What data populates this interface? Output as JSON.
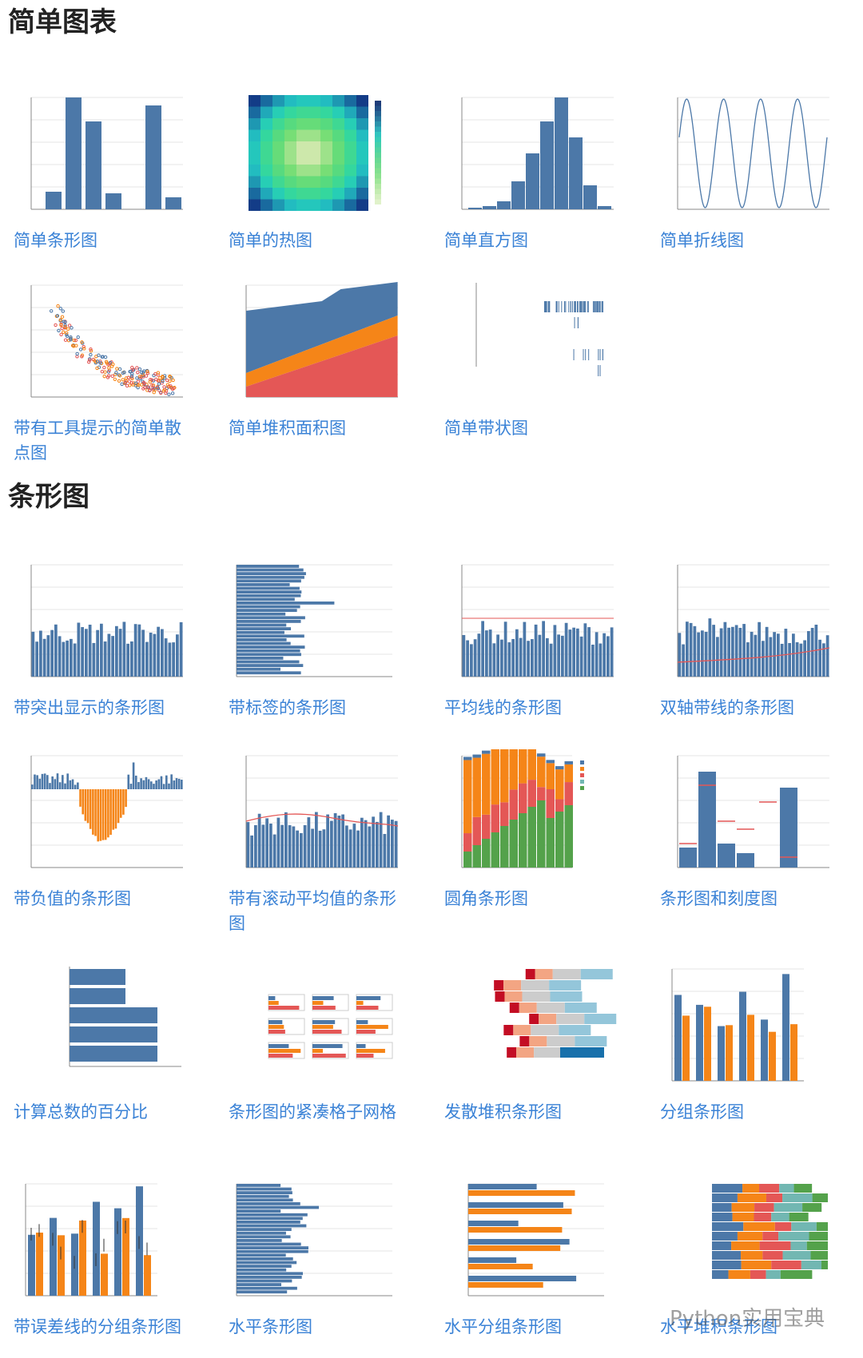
{
  "sections": [
    {
      "title": "简单图表",
      "items": [
        "简单条形图",
        "简单的热图",
        "简单直方图",
        "简单折线图",
        "带有工具提示的简单散点图",
        "简单堆积面积图",
        "简单带状图"
      ]
    },
    {
      "title": "条形图",
      "items": [
        "带突出显示的条形图",
        "带标签的条形图",
        "平均线的条形图",
        "双轴带线的条形图",
        "带负值的条形图",
        "带有滚动平均值的条形图",
        "圆角条形图",
        "条形图和刻度图",
        "计算总数的百分比",
        "条形图的紧凑格子网格",
        "发散堆积条形图",
        "分组条形图",
        "带误差线的分组条形图",
        "水平条形图",
        "水平分组条形图",
        "水平堆积条形图"
      ]
    }
  ],
  "watermark": "Python实用宝典"
}
